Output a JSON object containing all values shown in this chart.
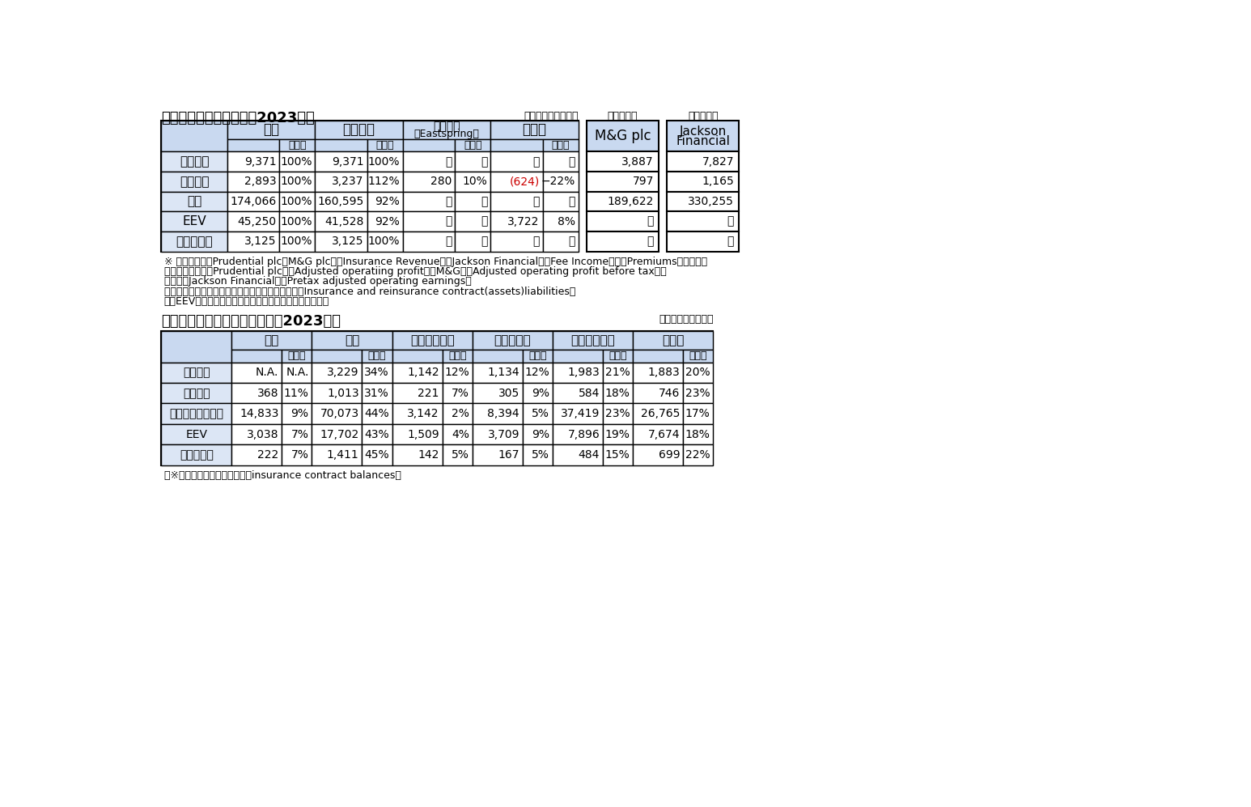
{
  "title1": "保険事業の地域別内訳（2023年）",
  "title2": "うち　アジアの主要国別内訳（2023年）",
  "unit_top_main": "（単位：百万ドル）",
  "unit_top_mg": "百万ポンド",
  "unit_top_jf": "百万ドル）",
  "unit_top2": "（単位：百万ドル）",
  "header_bg": "#c9d9f0",
  "row_bg": "#dce6f5",
  "white": "#ffffff",
  "border": "#000000",
  "red_color": "#cc0000",
  "table1": {
    "row_labels": [
      "保険収益",
      "営業利益",
      "資産",
      "EEV",
      "新契約利益"
    ],
    "data": [
      [
        "9,371",
        "100%",
        "9,371",
        "100%",
        "－",
        "－",
        "－",
        "－",
        "3,887",
        "7,827"
      ],
      [
        "2,893",
        "100%",
        "3,237",
        "112%",
        "280",
        "10%",
        "(624)",
        "−22%",
        "797",
        "1,165"
      ],
      [
        "174,066",
        "100%",
        "160,595",
        "92%",
        "－",
        "－",
        "－",
        "－",
        "189,622",
        "330,255"
      ],
      [
        "45,250",
        "100%",
        "41,528",
        "92%",
        "－",
        "－",
        "3,722",
        "8%",
        "－",
        "－"
      ],
      [
        "3,125",
        "100%",
        "3,125",
        "100%",
        "－",
        "－",
        "－",
        "－",
        "－",
        "－"
      ]
    ],
    "red_row": 1,
    "red_col": 6
  },
  "table2": {
    "row_labels": [
      "保険収益",
      "営業利益",
      "保険契約者負債等",
      "EEV",
      "新契約利益"
    ],
    "col_group_names": [
      "中国",
      "香港",
      "インドネシア",
      "マレーシア",
      "シンガポール",
      "その他"
    ],
    "data": [
      [
        "N.A.",
        "N.A.",
        "3,229",
        "34%",
        "1,142",
        "12%",
        "1,134",
        "12%",
        "1,983",
        "21%",
        "1,883",
        "20%"
      ],
      [
        "368",
        "11%",
        "1,013",
        "31%",
        "221",
        "7%",
        "305",
        "9%",
        "584",
        "18%",
        "746",
        "23%"
      ],
      [
        "14,833",
        "9%",
        "70,073",
        "44%",
        "3,142",
        "2%",
        "8,394",
        "5%",
        "37,419",
        "23%",
        "26,765",
        "17%"
      ],
      [
        "3,038",
        "7%",
        "17,702",
        "43%",
        "1,509",
        "4%",
        "3,709",
        "9%",
        "7,896",
        "19%",
        "7,674",
        "18%"
      ],
      [
        "222",
        "7%",
        "1,411",
        "45%",
        "142",
        "5%",
        "167",
        "5%",
        "484",
        "15%",
        "699",
        "22%"
      ]
    ]
  },
  "footnotes1": [
    "※ 保険収益は、Prudential plcとM&G plcは「Insurance Revenue」、Jackson Financialは「Fee Income」と「Premiums」の合計値",
    "　　営業利益は、Prudential plcは「Adjusted operatiing profit」、M&Gは「Adjusted operating profit before tax」、",
    "　　　　Jackson Financialは「Pretax adjusted operating earnings」",
    "　　資産は、会社全体の数値、保険事業の数値は「Insurance and reinsurance contract(assets)liabilities」",
    "　　EEVの「その他」は、資産管理及びその他の合計数値"
  ],
  "footnote2": "（※）保険契約者負債等は、「insurance contract balances」"
}
